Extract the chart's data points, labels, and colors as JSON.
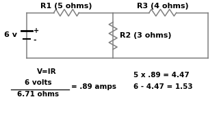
{
  "bg_color": "#ffffff",
  "line_color": "#7f7f7f",
  "text_color": "#000000",
  "labels": {
    "r1": "R1 (5 ohms)",
    "r2": "R2 (3 ohms)",
    "r3": "R3 (4 ohms)",
    "voltage": "6 v",
    "plus": "+",
    "minus": "-"
  },
  "formulas": {
    "line1": "V=IR",
    "line2": "6 volts",
    "line3": "6.71 ohms",
    "line4": "= .89 amps",
    "line5": "5 x .89 = 4.47",
    "line6": "6 - 4.47 = 1.53"
  },
  "font_size_label": 8,
  "font_size_formula": 7.5,
  "font_size_voltage": 8
}
